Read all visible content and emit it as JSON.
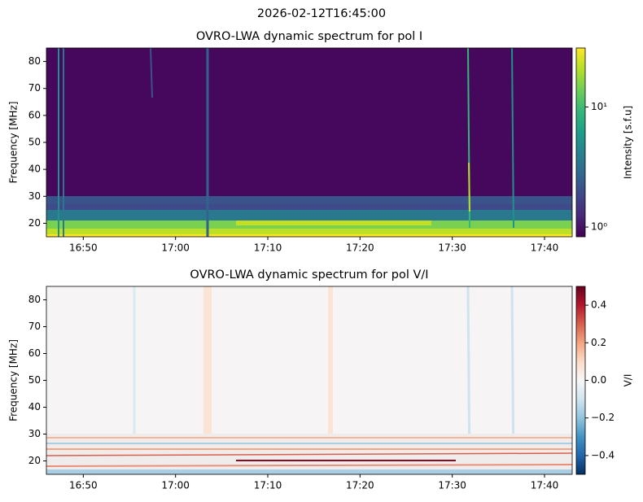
{
  "suptitle": "2026-02-12T16:45:00",
  "chart_data": [
    {
      "type": "heatmap",
      "title": "OVRO-LWA dynamic spectrum for pol I",
      "y_label": "Frequency [MHz]",
      "xlim": [
        "16:46",
        "17:43"
      ],
      "xticks": [
        "16:50",
        "17:00",
        "17:10",
        "17:20",
        "17:30",
        "17:40"
      ],
      "ylim": [
        15,
        85
      ],
      "yticks": [
        20,
        30,
        40,
        50,
        60,
        70,
        80
      ],
      "colorbar": {
        "label": "Intensity [s.f.u]",
        "log": true,
        "colormap": "viridis",
        "lim": [
          0.83,
          31
        ],
        "ticks": [
          {
            "value": 1,
            "label": "10⁰"
          },
          {
            "value": 10,
            "label": "10¹"
          }
        ]
      }
    },
    {
      "type": "heatmap",
      "title": "OVRO-LWA dynamic spectrum for pol V/I",
      "y_label": "Frequency [MHz]",
      "xlim": [
        "16:46",
        "17:43"
      ],
      "xticks": [
        "16:50",
        "17:00",
        "17:10",
        "17:20",
        "17:30",
        "17:40"
      ],
      "ylim": [
        15,
        85
      ],
      "yticks": [
        20,
        30,
        40,
        50,
        60,
        70,
        80
      ],
      "colorbar": {
        "label": "V/I",
        "log": false,
        "colormap": "RdBu_r",
        "lim": [
          -0.5,
          0.5
        ],
        "ticks": [
          {
            "value": -0.4,
            "label": "−0.4"
          },
          {
            "value": -0.2,
            "label": "−0.2"
          },
          {
            "value": 0,
            "label": "0.0"
          },
          0.2,
          0.4
        ]
      }
    }
  ]
}
